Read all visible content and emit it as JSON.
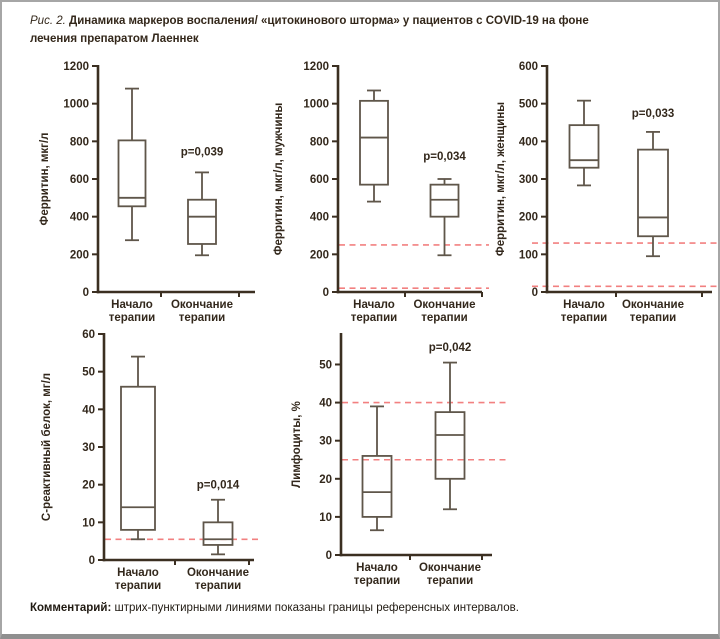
{
  "figure": {
    "caption_prefix": "Рис. 2.",
    "caption_text": "Динамика маркеров воспаления/ «цитокинового шторма» у пациентов с COVID-19 на фоне лечения препаратом Лаеннек"
  },
  "comment": {
    "label": "Комментарий:",
    "text": "штрих-пунктирными линиями показаны границы референсных интервалов."
  },
  "colors": {
    "ink": "#33281c",
    "axis": "#3b2f21",
    "box_stroke": "#5f564a",
    "reference_line": "#f28080",
    "frame_border": "#a6a6a6",
    "frame_bottom": "#8f8f8f"
  },
  "chart_data": [
    {
      "type": "box",
      "ylabel": "Ферритин, мкг/л",
      "categories": [
        [
          "Начало",
          "терапии"
        ],
        [
          "Окончание",
          "терапии"
        ]
      ],
      "yticks": [
        0,
        200,
        400,
        600,
        800,
        1000,
        1200
      ],
      "ylim": [
        0,
        1200
      ],
      "grid": false,
      "p_label": "p=0,039",
      "p_y": 725,
      "boxes": [
        {
          "whisker_low": 275,
          "q1": 455,
          "median": 500,
          "q3": 805,
          "whisker_high": 1080
        },
        {
          "whisker_low": 195,
          "q1": 255,
          "median": 400,
          "q3": 490,
          "whisker_high": 635
        }
      ],
      "reference_lines": []
    },
    {
      "type": "box",
      "ylabel": "Ферритин, мкг/л, мужчины",
      "categories": [
        [
          "Начало",
          "терапии"
        ],
        [
          "Окончание",
          "терапии"
        ]
      ],
      "yticks": [
        0,
        200,
        400,
        600,
        800,
        1000,
        1200
      ],
      "ylim": [
        0,
        1200
      ],
      "grid": false,
      "p_label": "p=0,034",
      "p_y": 700,
      "boxes": [
        {
          "whisker_low": 480,
          "q1": 570,
          "median": 820,
          "q3": 1015,
          "whisker_high": 1070
        },
        {
          "whisker_low": 195,
          "q1": 400,
          "median": 490,
          "q3": 570,
          "whisker_high": 600
        }
      ],
      "reference_lines": [
        250,
        20
      ]
    },
    {
      "type": "box",
      "ylabel": "Ферритин, мкг/л, женщины",
      "categories": [
        [
          "Начало",
          "терапии"
        ],
        [
          "Окончание",
          "терапии"
        ]
      ],
      "yticks": [
        0,
        100,
        200,
        300,
        400,
        500,
        600
      ],
      "ylim": [
        0,
        600
      ],
      "grid": false,
      "p_label": "p=0,033",
      "p_y": 465,
      "boxes": [
        {
          "whisker_low": 283,
          "q1": 330,
          "median": 350,
          "q3": 443,
          "whisker_high": 508
        },
        {
          "whisker_low": 95,
          "q1": 148,
          "median": 198,
          "q3": 378,
          "whisker_high": 425
        }
      ],
      "reference_lines": [
        130,
        15
      ]
    },
    {
      "type": "box",
      "ylabel": "С-реактивный белок, мг/л",
      "categories": [
        [
          "Начало",
          "терапии"
        ],
        [
          "Окончание",
          "терапии"
        ]
      ],
      "yticks": [
        0,
        10,
        20,
        30,
        40,
        50,
        60
      ],
      "ylim": [
        0,
        60
      ],
      "grid": false,
      "p_label": "p=0,014",
      "p_y": 19,
      "boxes": [
        {
          "whisker_low": 5.5,
          "q1": 8,
          "median": 14,
          "q3": 46,
          "whisker_high": 54
        },
        {
          "whisker_low": 1.5,
          "q1": 4,
          "median": 5.5,
          "q3": 10,
          "whisker_high": 16
        }
      ],
      "reference_lines": [
        5.5
      ]
    },
    {
      "type": "box",
      "ylabel": "Лимфоциты, %",
      "categories": [
        [
          "Начало",
          "терапии"
        ],
        [
          "Окончание",
          "терапии"
        ]
      ],
      "yticks": [
        0,
        10,
        20,
        30,
        40,
        50
      ],
      "ylim": [
        0,
        58
      ],
      "grid": false,
      "p_label": "p=0,042",
      "p_y": 53.5,
      "boxes": [
        {
          "whisker_low": 6.5,
          "q1": 10,
          "median": 16.5,
          "q3": 26,
          "whisker_high": 39
        },
        {
          "whisker_low": 12,
          "q1": 20,
          "median": 31.5,
          "q3": 37.5,
          "whisker_high": 50.5
        }
      ],
      "reference_lines": [
        40,
        25
      ]
    }
  ]
}
